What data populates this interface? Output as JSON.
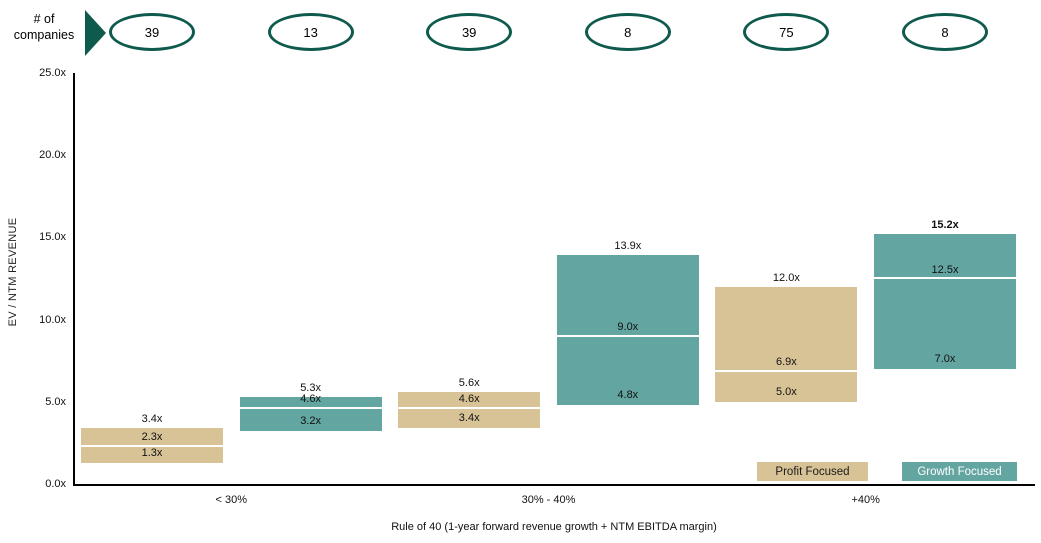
{
  "counts_row": {
    "label": "# of companies"
  },
  "chart_data": {
    "type": "bar",
    "subtype": "floating-range-bar",
    "title": "",
    "ylabel": "EV / NTM REVENUE",
    "xlabel": "Rule of 40 (1-year forward revenue growth + NTM EBITDA margin)",
    "ylim": [
      0,
      25
    ],
    "ytick_values": [
      0,
      5,
      10,
      15,
      20,
      25
    ],
    "ytick_labels": [
      "0.0x",
      "5.0x",
      "10.0x",
      "15.0x",
      "20.0x",
      "25.0x"
    ],
    "value_suffix": "x",
    "grid": false,
    "legend_position": "bottom-right",
    "categories": [
      "< 30%",
      "30% - 40%",
      "+40%"
    ],
    "series_names": [
      "Profit Focused",
      "Growth Focused"
    ],
    "bars": [
      {
        "category": "< 30%",
        "series": "Profit Focused",
        "companies": "39",
        "min": 1.3,
        "median": 2.3,
        "max": 3.4,
        "max_label_bold": false
      },
      {
        "category": "< 30%",
        "series": "Growth Focused",
        "companies": "13",
        "min": 3.2,
        "median": 4.6,
        "max": 5.3,
        "max_label_bold": false
      },
      {
        "category": "30% - 40%",
        "series": "Profit Focused",
        "companies": "39",
        "min": 3.4,
        "median": 4.6,
        "max": 5.6,
        "max_label_bold": false
      },
      {
        "category": "30% - 40%",
        "series": "Growth Focused",
        "companies": "8",
        "min": 4.8,
        "median": 9.0,
        "max": 13.9,
        "max_label_bold": false
      },
      {
        "category": "+40%",
        "series": "Profit Focused",
        "companies": "75",
        "min": 5.0,
        "median": 6.9,
        "max": 12.0,
        "max_label_bold": false
      },
      {
        "category": "+40%",
        "series": "Growth Focused",
        "companies": "8",
        "min": 7.0,
        "median": 12.5,
        "max": 15.2,
        "max_label_bold": true
      }
    ]
  },
  "legend": {
    "items": [
      {
        "label": "Profit Focused",
        "color": "#d8c397",
        "text_color": "#1a1a1a"
      },
      {
        "label": "Growth Focused",
        "color": "#63a5a1",
        "text_color": "#ffffff"
      }
    ]
  },
  "colors": {
    "profit": "#d8c397",
    "growth": "#63a5a1",
    "dark_teal": "#0e5a4d",
    "median_line": "#ffffff",
    "axis": "#000000"
  }
}
